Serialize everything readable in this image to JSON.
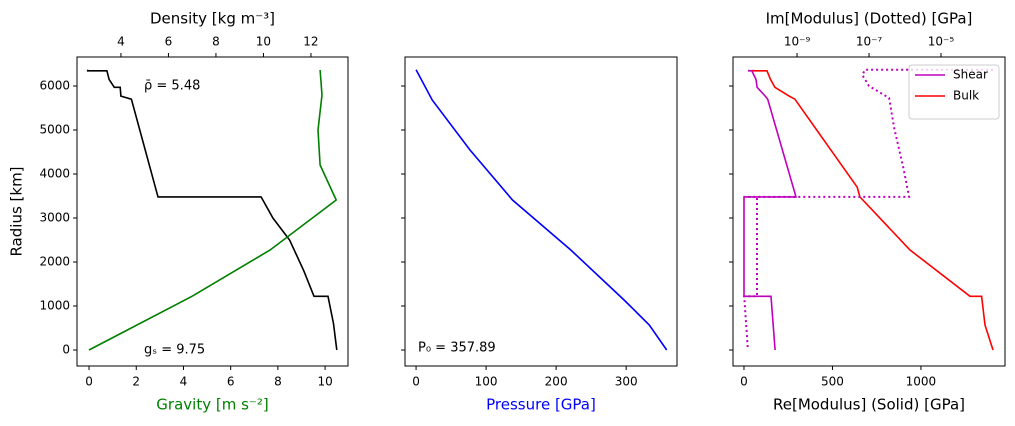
{
  "chart_data": [
    {
      "type": "line",
      "x2label": "Density [kg m⁻³]",
      "xlabel": "Gravity [m s⁻²]",
      "xlabel_color": "green",
      "ylabel": "Radius [km]",
      "xlim": [
        -0.51,
        10.97
      ],
      "xticks": [
        0,
        2,
        4,
        6,
        8,
        10
      ],
      "x2lim": [
        2.15,
        13.56
      ],
      "x2ticks": [
        4,
        6,
        8,
        10,
        12
      ],
      "ylim": [
        -364,
        6659
      ],
      "yticks": [
        0,
        1000,
        2000,
        3000,
        4000,
        5000,
        6000
      ],
      "ytick_labels": true,
      "series": [
        {
          "color": "black",
          "axis": "x2",
          "x": [
            2.6,
            2.6,
            3.41,
            3.5,
            3.72,
            3.97,
            4.0,
            4.44,
            5.56,
            9.9,
            10.4,
            11.1,
            11.7,
            12.13,
            12.72,
            12.95,
            13.09
          ],
          "y": [
            6371,
            6346,
            6346,
            6151,
            5971,
            5971,
            5771,
            5701,
            3480,
            3480,
            3000,
            2500,
            1800,
            1221,
            1221,
            600,
            0
          ]
        },
        {
          "color": "green",
          "axis": "x",
          "x": [
            0,
            4.36,
            7.67,
            10.47,
            9.79,
            9.7,
            9.87,
            9.79
          ],
          "y": [
            0,
            1221,
            2273,
            3409,
            4205,
            5000,
            5795,
            6364
          ]
        }
      ],
      "annotations": [
        "ρ̄ = 5.48",
        "gₛ = 9.75"
      ]
    },
    {
      "type": "line",
      "xlabel": "Pressure [GPa]",
      "xlabel_color": "blue",
      "xlim": [
        -15.8,
        372.6
      ],
      "xticks": [
        0,
        100,
        200,
        300
      ],
      "ylim": [
        -364,
        6659
      ],
      "yticks": [
        0,
        1000,
        2000,
        3000,
        4000,
        5000,
        6000
      ],
      "ytick_labels": false,
      "series": [
        {
          "color": "blue",
          "axis": "x",
          "x": [
            0,
            23,
            77,
            137.7,
            221,
            297,
            333,
            357.89
          ],
          "y": [
            6371,
            5682,
            4545,
            3409,
            2273,
            1136,
            568,
            0
          ]
        }
      ],
      "annotations": [
        "P₀ = 357.89"
      ]
    },
    {
      "type": "line",
      "xlabel": "Re[Modulus] (Solid) [GPa]",
      "xlabel_color": "black",
      "x2label": "Im[Modulus] (Dotted) [GPa]",
      "xlim": [
        -62,
        1475
      ],
      "xticks": [
        0,
        500,
        1000
      ],
      "x2lim": [
        1.66e-11,
        0.0006
      ],
      "x2log": true,
      "x2ticks": [
        {
          "value": 1e-09,
          "label": "10⁻⁹"
        },
        {
          "value": 1e-07,
          "label": "10⁻⁷"
        },
        {
          "value": 1e-05,
          "label": "10⁻⁵"
        }
      ],
      "ylim": [
        -364,
        6659
      ],
      "yticks": [
        0,
        1000,
        2000,
        3000,
        4000,
        5000,
        6000
      ],
      "ytick_labels": false,
      "legend": "upper right",
      "series": [
        {
          "name": "Shear",
          "color": "#bf00bf",
          "axis": "x",
          "x": [
            27,
            27,
            44,
            68,
            74,
            120,
            134,
            294,
            0,
            0,
            153,
            176
          ],
          "y": [
            6371,
            6346,
            6346,
            6151,
            5971,
            5771,
            5701,
            3480,
            3480,
            1221,
            1221,
            0
          ]
        },
        {
          "name": "Bulk",
          "color": "red",
          "axis": "x",
          "x": [
            52,
            52,
            130,
            150,
            175,
            255,
            288,
            640,
            655,
            938,
            1277,
            1343,
            1362,
            1407
          ],
          "y": [
            6371,
            6346,
            6346,
            6151,
            5971,
            5771,
            5701,
            3700,
            3480,
            2273,
            1221,
            1221,
            568,
            0
          ]
        },
        {
          "color": "#bf00bf",
          "axis": "x2",
          "dash": "dotted",
          "x": [
            0.00028,
            7.8e-08,
            6.5e-08,
            1e-07,
            3.6e-07,
            5e-07,
            9e-07,
            1.3e-06,
            3.4e-11,
            7.7e-11,
            7.7e-11,
            3.4e-11,
            4.3e-11
          ],
          "y": [
            6371,
            6371,
            6250,
            6000,
            5727,
            5045,
            4136,
            3480,
            3480,
            3480,
            1221,
            1221,
            0
          ]
        }
      ],
      "annotations": []
    }
  ]
}
